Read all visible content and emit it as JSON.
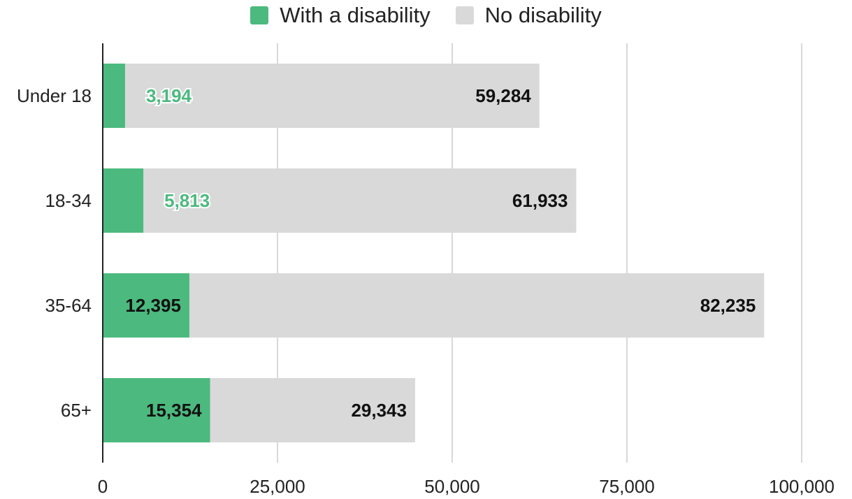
{
  "chart_data": {
    "type": "bar",
    "orientation": "horizontal",
    "stacked": true,
    "categories": [
      "Under 18",
      "18-34",
      "35-64",
      "65+"
    ],
    "series": [
      {
        "name": "With a disability",
        "values": [
          3194,
          5813,
          12395,
          15354
        ],
        "labels": [
          "3,194",
          "5,813",
          "12,395",
          "15,354"
        ],
        "color": "#4cb97f"
      },
      {
        "name": "No disability",
        "values": [
          59284,
          61933,
          82235,
          29343
        ],
        "labels": [
          "59,284",
          "61,933",
          "82,235",
          "29,343"
        ],
        "color": "#d9d9d9"
      }
    ],
    "xlim": [
      0,
      100000
    ],
    "x_ticks": [
      0,
      25000,
      50000,
      75000,
      100000
    ],
    "x_tick_labels": [
      "0",
      "25,000",
      "50,000",
      "75,000",
      "100,000"
    ],
    "grid": true,
    "legend_position": "top-center",
    "title": "",
    "xlabel": "",
    "ylabel": ""
  }
}
